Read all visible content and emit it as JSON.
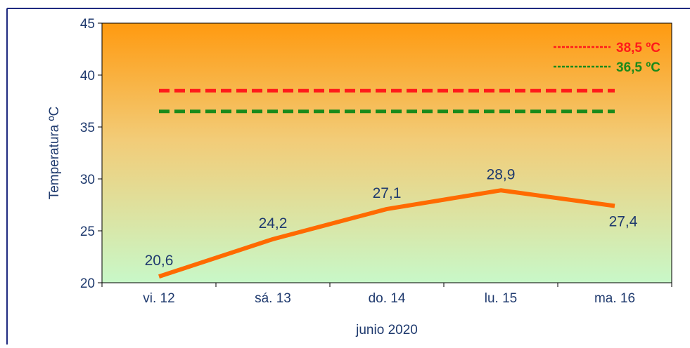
{
  "chart_data": {
    "type": "line",
    "title": "",
    "xlabel": "junio 2020",
    "ylabel": "Temperatura ºC",
    "categories": [
      "vi. 12",
      "sá. 13",
      "do. 14",
      "lu. 15",
      "ma. 16"
    ],
    "ylim": [
      20,
      45
    ],
    "yticks": [
      20,
      25,
      30,
      35,
      40,
      45
    ],
    "series": [
      {
        "values": [
          20.6,
          24.2,
          27.1,
          28.9,
          27.4
        ],
        "labels": [
          "20,6",
          "24,2",
          "27,1",
          "28,9",
          "27,4"
        ],
        "color": "#ff6a00"
      }
    ],
    "reference_lines": [
      {
        "name": "38,5 ºC",
        "value": 38.5,
        "color": "#ff1a1a",
        "style": "dashed"
      },
      {
        "name": "36,5 ºC",
        "value": 36.5,
        "color": "#1a8a1a",
        "style": "dashed"
      }
    ],
    "legend_placement": "top-right",
    "grid": false,
    "background_gradient": [
      "#ff9a10",
      "#c8f8c8"
    ],
    "text_color": "#1f3a6e",
    "frame_color": "#1f2a80"
  }
}
